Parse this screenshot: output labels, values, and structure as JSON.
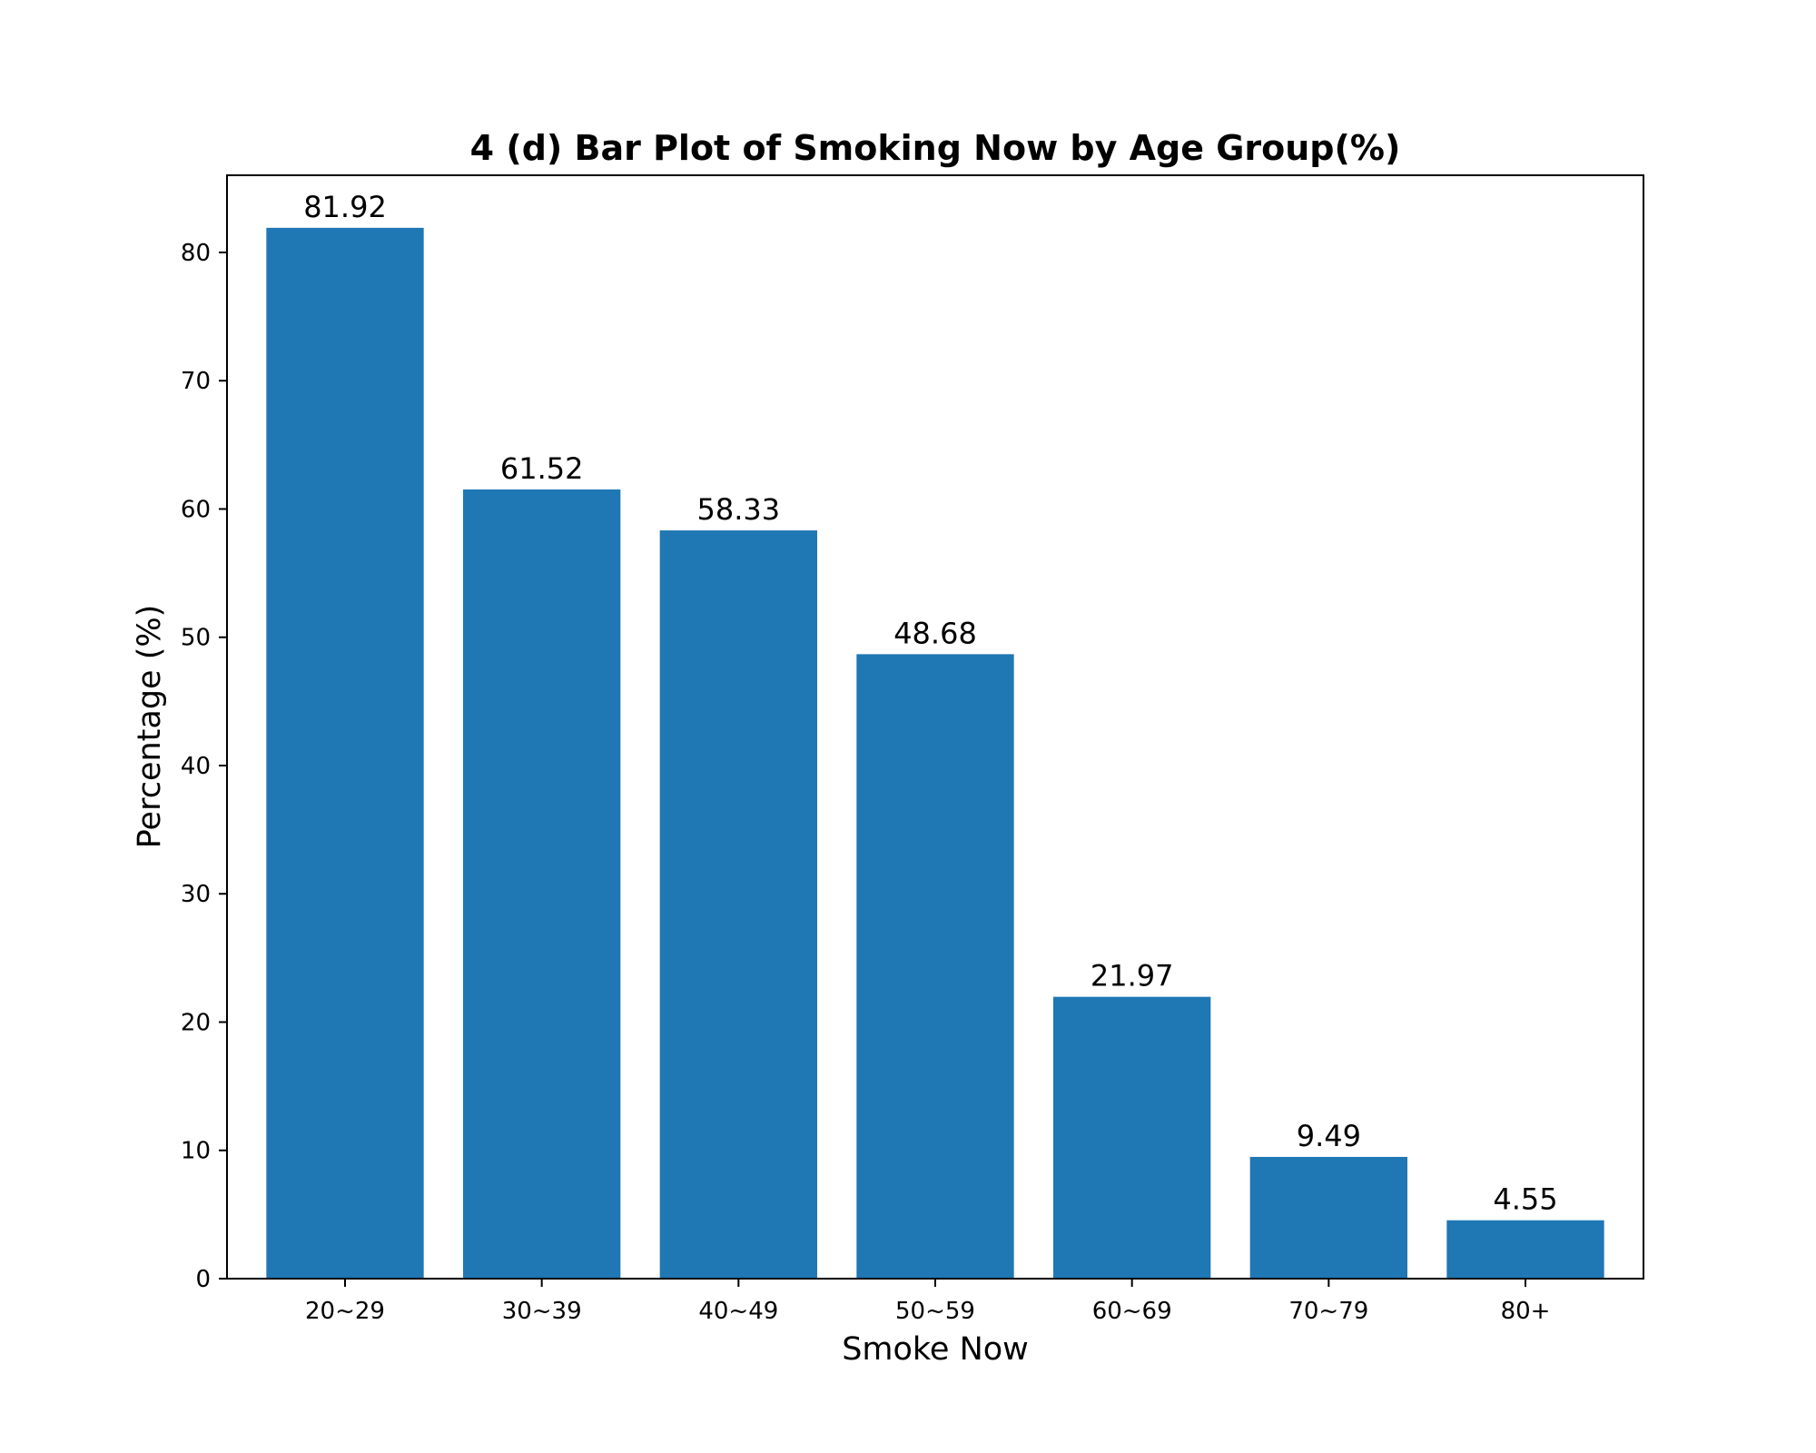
{
  "chart_data": {
    "type": "bar",
    "title": "4 (d) Bar Plot of Smoking Now by Age Group(%)",
    "xlabel": "Smoke Now",
    "ylabel": "Percentage (%)",
    "categories": [
      "20~29",
      "30~39",
      "40~49",
      "50~59",
      "60~69",
      "70~79",
      "80+"
    ],
    "values": [
      81.92,
      61.52,
      58.33,
      48.68,
      21.97,
      9.49,
      4.55
    ],
    "data_labels": [
      "81.92",
      "61.52",
      "58.33",
      "48.68",
      "21.97",
      "9.49",
      "4.55"
    ],
    "ylim": [
      0,
      86.016
    ],
    "yticks": [
      0,
      10,
      20,
      30,
      40,
      50,
      60,
      70,
      80
    ],
    "grid": false,
    "legend": "none",
    "colors": {
      "bar": "#1f77b4",
      "axes": "#000000",
      "background": "#ffffff"
    }
  }
}
